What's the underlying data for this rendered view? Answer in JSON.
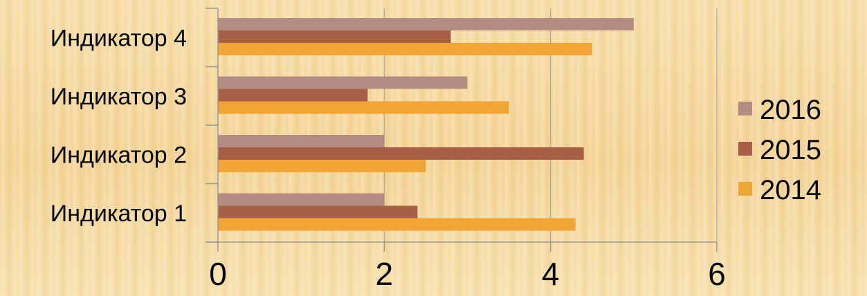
{
  "chart_data": {
    "type": "bar",
    "orientation": "horizontal",
    "categories": [
      "Индикатор 1",
      "Индикатор 2",
      "Индикатор 3",
      "Индикатор 4"
    ],
    "series": [
      {
        "name": "2014",
        "color": "#f0a534",
        "values": [
          4.3,
          2.5,
          3.5,
          4.5
        ]
      },
      {
        "name": "2015",
        "color": "#a85f47",
        "values": [
          2.4,
          4.4,
          1.8,
          2.8
        ]
      },
      {
        "name": "2016",
        "color": "#b58c82",
        "values": [
          2.0,
          2.0,
          3.0,
          5.0
        ]
      }
    ],
    "xlim": [
      0,
      6
    ],
    "x_ticks": [
      "0",
      "2",
      "4",
      "6"
    ],
    "grid": "vertical",
    "legend": {
      "position": "right",
      "items": [
        "2016",
        "2015",
        "2014"
      ]
    }
  }
}
